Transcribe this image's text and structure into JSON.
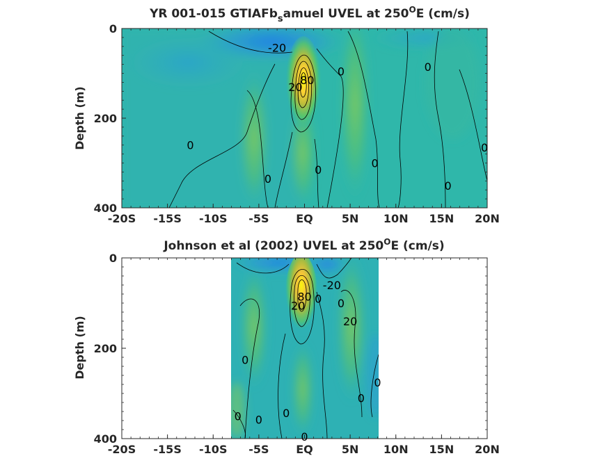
{
  "chart_data": [
    {
      "type": "heatmap",
      "title_parts": [
        "YR 001-015 GTIAFb",
        "s",
        "amuel UVEL at 250",
        "O",
        "E (cm/s)"
      ],
      "ylabel": "Depth (m)",
      "xlabel": "",
      "x_ticks": [
        "-20S",
        "-15S",
        "-10S",
        "-5S",
        "EQ",
        "5N",
        "10N",
        "15N",
        "20N"
      ],
      "x_tick_values": [
        -20,
        -15,
        -10,
        -5,
        0,
        5,
        10,
        15,
        20
      ],
      "y_ticks": [
        "0",
        "200",
        "400"
      ],
      "y_tick_values": [
        0,
        200,
        400
      ],
      "xlim": [
        -20,
        20
      ],
      "ylim": [
        400,
        0
      ],
      "data_extent": [
        -20,
        20
      ],
      "colormap": "parula",
      "contour_labels": [
        {
          "text": "-20",
          "x": -3.0,
          "y": 43
        },
        {
          "text": "0",
          "x": 4.0,
          "y": 95
        },
        {
          "text": "0",
          "x": 13.5,
          "y": 85
        },
        {
          "text": "0",
          "x": -12.5,
          "y": 260
        },
        {
          "text": "0",
          "x": 7.7,
          "y": 300
        },
        {
          "text": "0",
          "x": 19.7,
          "y": 265
        },
        {
          "text": "0",
          "x": -4.0,
          "y": 335
        },
        {
          "text": "0",
          "x": 1.5,
          "y": 315
        },
        {
          "text": "0",
          "x": 15.7,
          "y": 350
        },
        {
          "text": "20",
          "x": -1.0,
          "y": 130
        },
        {
          "text": "80",
          "x": 0.3,
          "y": 115
        }
      ]
    },
    {
      "type": "heatmap",
      "title_parts": [
        "Johnson et al (2002) UVEL at 250",
        "O",
        "E (cm/s)"
      ],
      "ylabel": "Depth (m)",
      "xlabel": "",
      "x_ticks": [
        "-20S",
        "-15S",
        "-10S",
        "-5S",
        "EQ",
        "5N",
        "10N",
        "15N",
        "20N"
      ],
      "x_tick_values": [
        -20,
        -15,
        -10,
        -5,
        0,
        5,
        10,
        15,
        20
      ],
      "y_ticks": [
        "0",
        "200",
        "400"
      ],
      "y_tick_values": [
        0,
        200,
        400
      ],
      "xlim": [
        -20,
        20
      ],
      "ylim": [
        400,
        0
      ],
      "data_extent": [
        -8,
        8.2
      ],
      "colormap": "parula",
      "contour_labels": [
        {
          "text": "-20",
          "x": 3.0,
          "y": 60
        },
        {
          "text": "0",
          "x": 4.0,
          "y": 100
        },
        {
          "text": "0",
          "x": 1.5,
          "y": 90
        },
        {
          "text": "20",
          "x": -0.7,
          "y": 105
        },
        {
          "text": "80",
          "x": 0.0,
          "y": 85
        },
        {
          "text": "20",
          "x": 5.0,
          "y": 140
        },
        {
          "text": "0",
          "x": -6.5,
          "y": 225
        },
        {
          "text": "0",
          "x": 8.0,
          "y": 275
        },
        {
          "text": "0",
          "x": 6.2,
          "y": 310
        },
        {
          "text": "0",
          "x": -7.3,
          "y": 350
        },
        {
          "text": "0",
          "x": -5.0,
          "y": 358
        },
        {
          "text": "0",
          "x": -2.0,
          "y": 343
        },
        {
          "text": "0",
          "x": 0.0,
          "y": 395
        }
      ]
    }
  ]
}
